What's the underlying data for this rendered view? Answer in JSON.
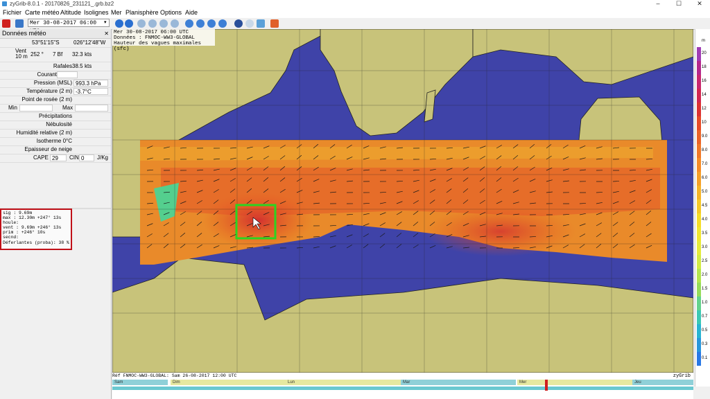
{
  "window": {
    "title": "zyGrib-8.0.1 - 20170826_231121_.grb.bz2",
    "min": "–",
    "max": "☐",
    "close": "✕"
  },
  "menu": [
    "Fichier",
    "Carte météo",
    "Altitude",
    "Isolignes",
    "Mer",
    "Planisphère",
    "Options",
    "Aide"
  ],
  "toolbar": {
    "date": "Mer 30-08-2017 06:00 UTC"
  },
  "panel": {
    "title": "Données météo",
    "lat": "53°51'15\"S",
    "lon": "026°12'48\"W",
    "wind_label": "Vent",
    "wind_alt": "10 m",
    "wind_dir": "252 °",
    "wind_bf": "7 Bf",
    "wind_speed": "32.3",
    "wind_unit": "kts",
    "gust_label": "Rafales",
    "gust_value": "38.5",
    "gust_unit": "kts",
    "current_label": "Courant",
    "pressure_label": "Pression (MSL)",
    "pressure_value": "993.3 hPa",
    "temp_label": "Température (2 m)",
    "temp_value": "-3.7°C",
    "dew_label": "Point de rosée (2 m)",
    "min_label": "Min",
    "max_label": "Max",
    "precip_label": "Précipitations",
    "cloud_label": "Nébulosité",
    "humidity_label": "Humidité relative (2 m)",
    "iso_label": "Isotherme 0°C",
    "snow_label": "Epaisseur de neige",
    "cape_label": "CAPE",
    "cape_value": "29",
    "cin_label": "CIN",
    "cin_value": "0",
    "cape_unit": "J/Kg"
  },
  "wave": [
    "sig  :  9.69m",
    "max  : 12.30m +247°  13s",
    "houle:",
    "vent :  9.69m +246°  13s",
    "prim :        +246°  10s",
    "secnd:",
    "Déferlantes (proba): 38 %"
  ],
  "map_info": [
    "Mer 30-08-2017 06:00 UTC",
    "Données : FNMOC-WW3-GLOBAL",
    "Hauteur des vagues maximales (sfc)"
  ],
  "legend": {
    "unit": "m",
    "levels": [
      "20",
      "18",
      "16",
      "14",
      "12",
      "10",
      "9.0",
      "8.0",
      "7.0",
      "6.0",
      "5.0",
      "4.5",
      "4.0",
      "3.5",
      "3.0",
      "2.5",
      "2.0",
      "1.5",
      "1.0",
      "0.7",
      "0.5",
      "0.3",
      "0.1"
    ],
    "colors": [
      "#a03cb4",
      "#b4288c",
      "#c8286e",
      "#d22850",
      "#dc3232",
      "#e64b28",
      "#eb6428",
      "#f07828",
      "#f58c28",
      "#f5a028",
      "#f5b428",
      "#f5c828",
      "#f5dc28",
      "#f0e632",
      "#e6eb3c",
      "#d2eb46",
      "#b4e650",
      "#96dc5a",
      "#64d28c",
      "#3cc8b4",
      "#28b4d2",
      "#2896dc",
      "#2878e6"
    ]
  },
  "timeline": {
    "ref": "Réf FNMOC-WW3-GLOBAL: Sam 26-08-2017 12:00 UTC",
    "brand": "zyGrib",
    "days": [
      "Sam",
      "Dim",
      "Lun",
      "Mar",
      "Mer",
      "Jeu"
    ]
  }
}
